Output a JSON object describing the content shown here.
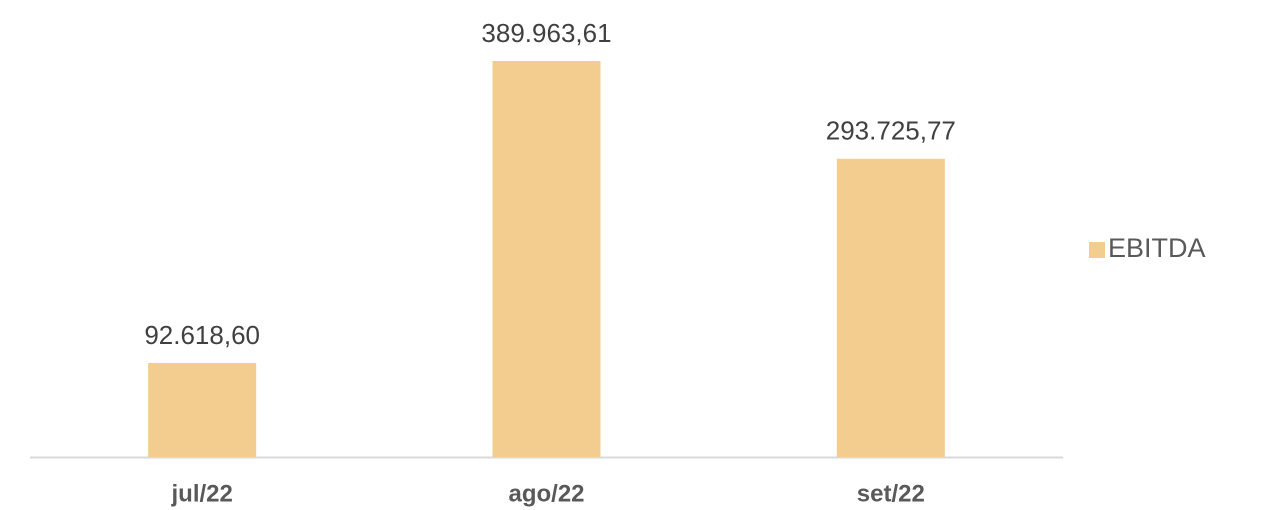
{
  "chart_data": {
    "type": "bar",
    "categories": [
      "jul/22",
      "ago/22",
      "set/22"
    ],
    "series": [
      {
        "name": "EBITDA",
        "color": "#f2cd8f",
        "values": [
          92618.6,
          389963.61,
          293725.77
        ],
        "value_labels": [
          "92.618,60",
          "389.963,61",
          "293.725,77"
        ]
      }
    ],
    "legend": "right"
  }
}
